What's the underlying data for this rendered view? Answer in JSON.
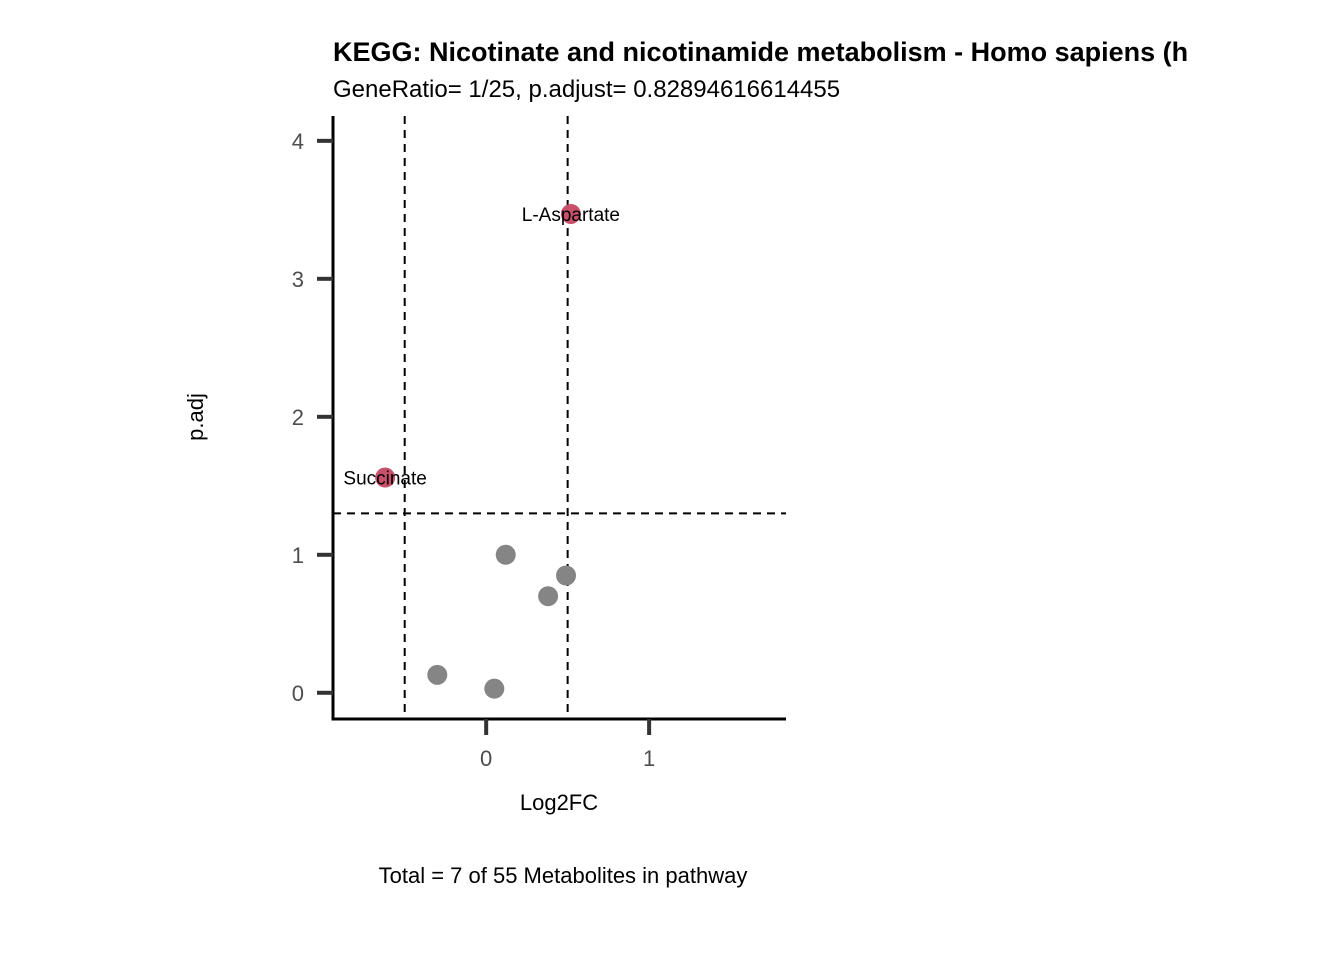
{
  "chart_data": {
    "type": "scatter",
    "title": "KEGG: Nicotinate and nicotinamide metabolism - Homo sapiens (h",
    "subtitle": "GeneRatio= 1/25, p.adjust= 0.82894616614455",
    "xlabel": "Log2FC",
    "ylabel": "p.adj",
    "caption": "Total = 7 of 55 Metabolites in pathway",
    "xlim": [
      -0.94,
      1.84
    ],
    "ylim": [
      -0.19,
      4.18
    ],
    "x_ticks": [
      0,
      1
    ],
    "x_tick_labels": [
      "0",
      "1"
    ],
    "y_ticks": [
      0,
      1,
      2,
      3,
      4
    ],
    "y_tick_labels": [
      "0",
      "1",
      "2",
      "3",
      "4"
    ],
    "vlines": [
      -0.5,
      0.5
    ],
    "hline": 1.3,
    "grid": false,
    "legend": "none",
    "colors": {
      "significant": "#c8506a",
      "nonsignificant": "#858585"
    },
    "points": [
      {
        "x": 0.52,
        "y": 3.47,
        "significant": true,
        "label": "L-Aspartate"
      },
      {
        "x": -0.62,
        "y": 1.56,
        "significant": true,
        "label": "Succinate"
      },
      {
        "x": 0.12,
        "y": 1.0,
        "significant": false,
        "label": ""
      },
      {
        "x": 0.49,
        "y": 0.85,
        "significant": false,
        "label": ""
      },
      {
        "x": 0.38,
        "y": 0.7,
        "significant": false,
        "label": ""
      },
      {
        "x": -0.3,
        "y": 0.13,
        "significant": false,
        "label": ""
      },
      {
        "x": 0.05,
        "y": 0.03,
        "significant": false,
        "label": ""
      }
    ]
  }
}
